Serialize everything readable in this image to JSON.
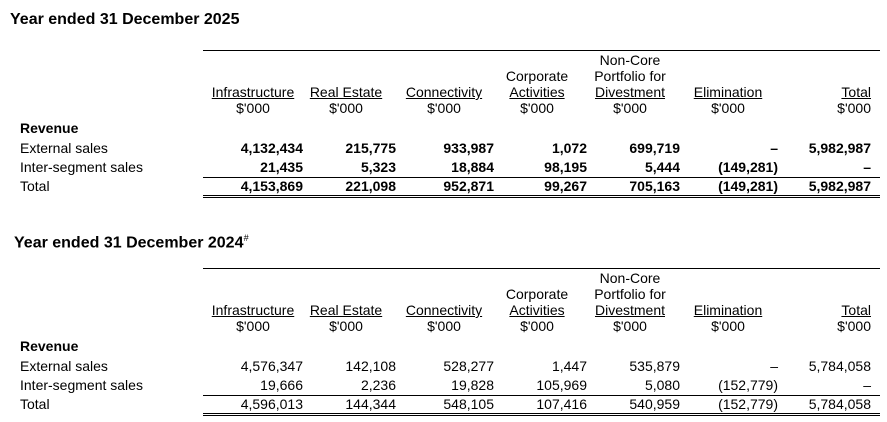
{
  "sections": [
    {
      "title": "Year ended 31 December 2025",
      "columns": [
        {
          "lines": [
            "Infrastructure"
          ],
          "unit": "$'000"
        },
        {
          "lines": [
            "Real Estate"
          ],
          "unit": "$'000"
        },
        {
          "lines": [
            "Connectivity"
          ],
          "unit": "$'000"
        },
        {
          "lines": [
            "Corporate",
            "Activities"
          ],
          "unit": "$'000"
        },
        {
          "lines": [
            "Non-Core",
            "Portfolio for",
            "Divestment"
          ],
          "unit": "$'000"
        },
        {
          "lines": [
            "Elimination"
          ],
          "unit": "$'000"
        },
        {
          "lines": [
            "Total"
          ],
          "unit": "$'000"
        }
      ],
      "group": "Revenue",
      "rows": [
        {
          "label": "External sales",
          "values": [
            "4,132,434",
            "215,775",
            "933,987",
            "1,072",
            "699,719",
            "–",
            "5,982,987"
          ]
        },
        {
          "label": "Inter-segment sales",
          "values": [
            "21,435",
            "5,323",
            "18,884",
            "98,195",
            "5,444",
            "(149,281)",
            "–"
          ]
        },
        {
          "label": "Total",
          "values": [
            "4,153,869",
            "221,098",
            "952,871",
            "99,267",
            "705,163",
            "(149,281)",
            "5,982,987"
          ]
        }
      ]
    },
    {
      "title": "Year ended 31 December 2024",
      "title_note": "#",
      "columns": [
        {
          "lines": [
            "Infrastructure"
          ],
          "unit": "$'000"
        },
        {
          "lines": [
            "Real Estate"
          ],
          "unit": "$'000"
        },
        {
          "lines": [
            "Connectivity"
          ],
          "unit": "$'000"
        },
        {
          "lines": [
            "Corporate",
            "Activities"
          ],
          "unit": "$'000"
        },
        {
          "lines": [
            "Non-Core",
            "Portfolio for",
            "Divestment"
          ],
          "unit": "$'000"
        },
        {
          "lines": [
            "Elimination"
          ],
          "unit": "$'000"
        },
        {
          "lines": [
            "Total"
          ],
          "unit": "$'000"
        }
      ],
      "group": "Revenue",
      "rows": [
        {
          "label": "External sales",
          "values": [
            "4,576,347",
            "142,108",
            "528,277",
            "1,447",
            "535,879",
            "–",
            "5,784,058"
          ]
        },
        {
          "label": "Inter-segment sales",
          "values": [
            "19,666",
            "2,236",
            "19,828",
            "105,969",
            "5,080",
            "(152,779)",
            "–"
          ]
        },
        {
          "label": "Total",
          "values": [
            "4,596,013",
            "144,344",
            "548,105",
            "107,416",
            "540,959",
            "(152,779)",
            "5,784,058"
          ]
        }
      ]
    }
  ]
}
